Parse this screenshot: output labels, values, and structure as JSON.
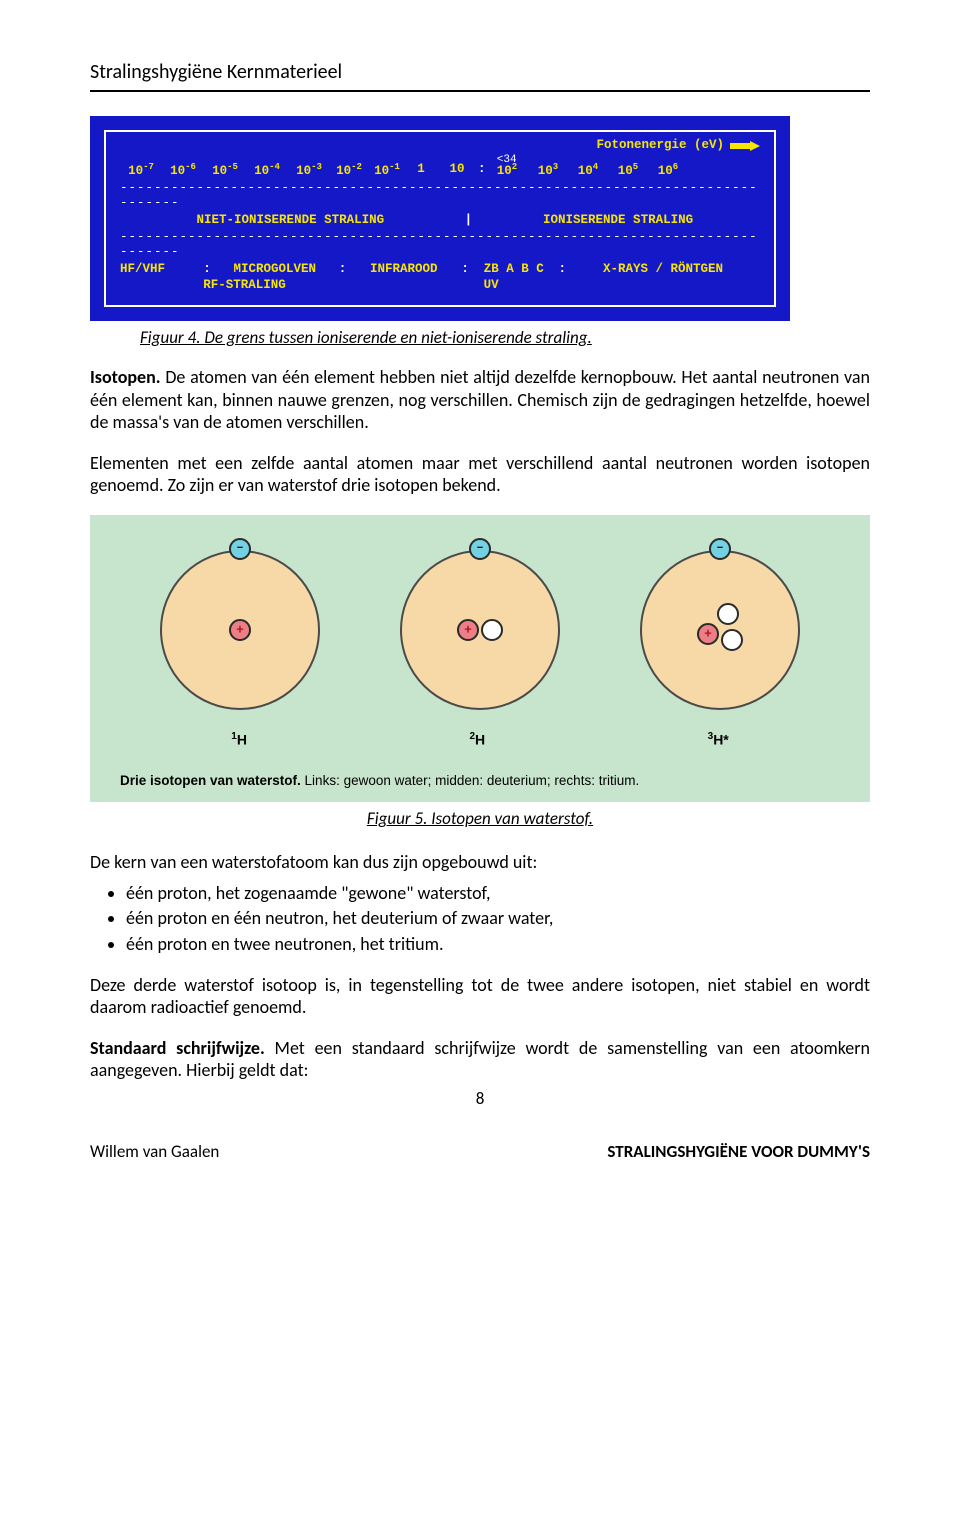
{
  "header": {
    "running_title": "Stralingshygiëne Kernmaterieel"
  },
  "spectrum": {
    "bg_color": "#1418c7",
    "fg_color": "#f7e600",
    "border_color": "#ffffff",
    "title_right": "Fotonenergie (eV)",
    "threshold_label": "<34",
    "scale_exponents": [
      "-7",
      "-6",
      "-5",
      "-4",
      "-3",
      "-2",
      "-1",
      "",
      "",
      "2",
      "3",
      "4",
      "5",
      "6"
    ],
    "scale_values": [
      "10",
      "10",
      "10",
      "10",
      "10",
      "10",
      "10",
      "1",
      "10",
      "10",
      "10",
      "10",
      "10",
      "10"
    ],
    "left_category": "NIET-IONISERENDE STRALING",
    "right_category": "IONISERENDE STRALING",
    "bands_line1": {
      "hf": "HF/VHF",
      "micro": "MICROGOLVEN",
      "ir": "INFRAROOD",
      "vis": "ZB A B C",
      "xray": "X-RAYS / RÖNTGEN"
    },
    "bands_line2": {
      "rf": "RF-STRALING",
      "uv": "UV"
    }
  },
  "caption4": "Figuur 4. De grens tussen ioniserende en niet-ioniserende straling.",
  "para_isotopen_lead": "Isotopen.",
  "para_isotopen": " De atomen van één element hebben niet altijd dezelfde kernopbouw. Het aantal neutronen van één element kan, binnen nauwe grenzen, nog verschillen. Chemisch zijn de gedragingen hetzelfde, hoewel de massa's van de atomen verschillen.",
  "para_elements": "Elementen met een zelfde aantal atomen maar met verschillend aantal neutronen worden isotopen genoemd. Zo zijn er van waterstof drie isotopen bekend.",
  "isotope_diagram": {
    "bg_color": "#c7e5cc",
    "shell_fill": "#f7d9a8",
    "electron_fill": "#73d2e2",
    "proton_fill": "#ec7f86",
    "neutron_fill": "#ffffff",
    "labels": [
      "¹H",
      "²H",
      "³H*"
    ],
    "caption_bold": "Drie isotopen van waterstof.",
    "caption_rest": " Links: gewoon water; midden: deuterium; rechts: tritium."
  },
  "caption5": "Figuur 5. Isotopen van waterstof.",
  "para_bullets_intro": "De kern van een waterstofatoom kan dus zijn opgebouwd uit:",
  "bullets": [
    "één proton, het zogenaamde \"gewone\" waterstof,",
    "één proton en één neutron, het deuterium of zwaar water,",
    "één proton en twee neutronen, het tritium."
  ],
  "para_third": "Deze derde waterstof isotoop is, in tegenstelling tot de twee andere isotopen, niet stabiel en wordt daarom radioactief genoemd.",
  "para_std_lead": "Standaard schrijfwijze.",
  "para_std": " Met een standaard schrijfwijze wordt de samenstelling van een atoomkern aangegeven. Hierbij geldt dat:",
  "page_number": "8",
  "footer": {
    "left": "Willem van Gaalen",
    "right": "STRALINGSHYGIËNE VOOR DUMMY'S"
  }
}
